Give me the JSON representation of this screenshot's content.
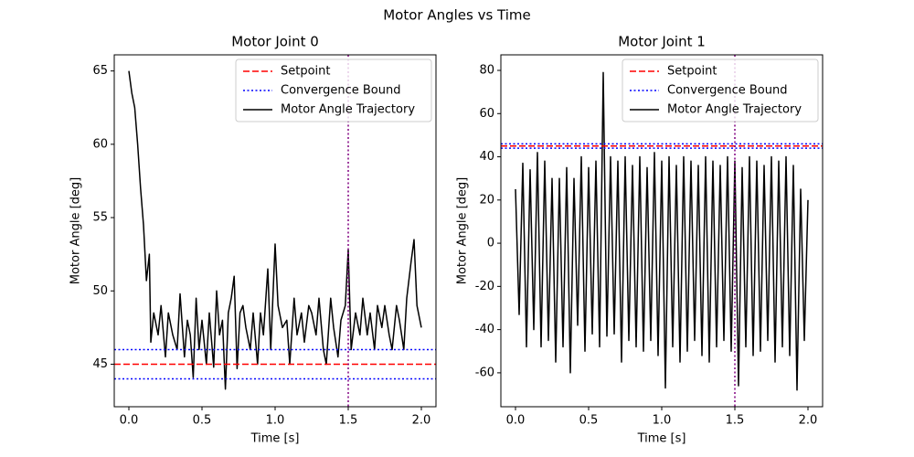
{
  "title": "Motor Angles vs Time",
  "chart_data": [
    {
      "type": "line",
      "title": "Motor Joint 0",
      "xlabel": "Time [s]",
      "ylabel": "Motor Angle [deg]",
      "xlim": [
        -0.1,
        2.1
      ],
      "ylim": [
        42.1,
        66.1
      ],
      "xticks": [
        {
          "value": 0,
          "label": "0.0"
        },
        {
          "value": 0.5,
          "label": "0.5"
        },
        {
          "value": 1,
          "label": "1.0"
        },
        {
          "value": 1.5,
          "label": "1.5"
        },
        {
          "value": 2,
          "label": "2.0"
        }
      ],
      "yticks": [
        45,
        50,
        55,
        60,
        65
      ],
      "legend": "upper right",
      "hlines": [
        {
          "name": "Setpoint",
          "color": "#ff0000",
          "style": "dashed",
          "values": [
            45
          ]
        },
        {
          "name": "Convergence Bound",
          "color": "#0000ff",
          "style": "dotted",
          "values": [
            44,
            46
          ]
        }
      ],
      "vlines": [
        {
          "color": "#800080",
          "style": "dotted",
          "values": [
            1.5
          ]
        }
      ],
      "series": [
        {
          "name": "Motor Angle Trajectory",
          "color": "#000000",
          "x": [
            0,
            0.02,
            0.04,
            0.06,
            0.08,
            0.1,
            0.12,
            0.14,
            0.15,
            0.17,
            0.2,
            0.22,
            0.25,
            0.27,
            0.3,
            0.33,
            0.35,
            0.38,
            0.4,
            0.42,
            0.44,
            0.46,
            0.48,
            0.5,
            0.53,
            0.55,
            0.58,
            0.6,
            0.62,
            0.64,
            0.66,
            0.68,
            0.7,
            0.72,
            0.74,
            0.76,
            0.78,
            0.8,
            0.83,
            0.85,
            0.88,
            0.9,
            0.92,
            0.95,
            0.97,
            1.0,
            1.02,
            1.05,
            1.08,
            1.1,
            1.13,
            1.15,
            1.18,
            1.2,
            1.23,
            1.25,
            1.28,
            1.3,
            1.33,
            1.35,
            1.38,
            1.4,
            1.43,
            1.45,
            1.48,
            1.5,
            1.52,
            1.55,
            1.58,
            1.6,
            1.63,
            1.65,
            1.68,
            1.7,
            1.73,
            1.75,
            1.78,
            1.8,
            1.83,
            1.85,
            1.88,
            1.9,
            1.93,
            1.95,
            1.97,
            2.0
          ],
          "values": [
            65,
            63.5,
            62.5,
            60,
            57,
            54.5,
            50.7,
            52.5,
            46.5,
            48.5,
            47,
            49,
            45.5,
            48.5,
            47,
            46,
            49.8,
            45.5,
            48,
            47,
            44.1,
            49.5,
            46,
            48,
            45,
            48.5,
            44.8,
            50,
            47,
            48,
            43.3,
            48.5,
            49.5,
            51,
            44.7,
            48.5,
            49,
            47.5,
            46,
            48.5,
            45,
            48.5,
            47,
            51.5,
            46,
            53.2,
            49,
            47.5,
            48,
            45,
            49.5,
            47,
            48.5,
            46.5,
            49,
            48.5,
            47,
            49.5,
            46,
            45,
            49.5,
            47.5,
            45.5,
            48,
            49,
            52.8,
            46,
            48.5,
            47,
            49.5,
            47,
            48.5,
            46,
            49,
            47.5,
            49,
            47,
            46,
            49,
            48,
            46,
            49.5,
            52,
            53.5,
            49,
            47.5
          ]
        }
      ]
    },
    {
      "type": "line",
      "title": "Motor Joint 1",
      "xlabel": "Time [s]",
      "ylabel": "Motor Angle [deg]",
      "xlim": [
        -0.1,
        2.1
      ],
      "ylim": [
        -75.7,
        87.2
      ],
      "xticks": [
        {
          "value": 0,
          "label": "0.0"
        },
        {
          "value": 0.5,
          "label": "0.5"
        },
        {
          "value": 1,
          "label": "1.0"
        },
        {
          "value": 1.5,
          "label": "1.5"
        },
        {
          "value": 2,
          "label": "2.0"
        }
      ],
      "yticks": [
        -60,
        -40,
        -20,
        0,
        20,
        40,
        60,
        80
      ],
      "legend": "upper right",
      "hlines": [
        {
          "name": "Setpoint",
          "color": "#ff0000",
          "style": "dashed",
          "values": [
            45
          ]
        },
        {
          "name": "Convergence Bound",
          "color": "#0000ff",
          "style": "dotted",
          "values": [
            44,
            46
          ]
        }
      ],
      "vlines": [
        {
          "color": "#800080",
          "style": "dotted",
          "values": [
            1.5
          ]
        }
      ],
      "series": [
        {
          "name": "Motor Angle Trajectory",
          "color": "#000000",
          "x": [
            0,
            0.025,
            0.05,
            0.075,
            0.1,
            0.125,
            0.15,
            0.175,
            0.2,
            0.225,
            0.25,
            0.275,
            0.3,
            0.325,
            0.35,
            0.375,
            0.4,
            0.425,
            0.45,
            0.475,
            0.5,
            0.525,
            0.55,
            0.575,
            0.6,
            0.625,
            0.65,
            0.675,
            0.7,
            0.725,
            0.75,
            0.775,
            0.8,
            0.825,
            0.85,
            0.875,
            0.9,
            0.925,
            0.95,
            0.975,
            1.0,
            1.025,
            1.05,
            1.075,
            1.1,
            1.125,
            1.15,
            1.175,
            1.2,
            1.225,
            1.25,
            1.275,
            1.3,
            1.325,
            1.35,
            1.375,
            1.4,
            1.425,
            1.45,
            1.475,
            1.5,
            1.525,
            1.55,
            1.575,
            1.6,
            1.625,
            1.65,
            1.675,
            1.7,
            1.725,
            1.75,
            1.775,
            1.8,
            1.825,
            1.85,
            1.875,
            1.9,
            1.925,
            1.95,
            1.975,
            2.0
          ],
          "values": [
            25,
            -33,
            37,
            -48,
            34,
            -40,
            42,
            -48,
            38,
            -45,
            30,
            -55,
            30,
            -48,
            35,
            -60,
            30,
            -38,
            40,
            -50,
            35,
            -42,
            38,
            -48,
            79,
            -43,
            40,
            -42,
            38,
            -55,
            40,
            -45,
            36,
            -48,
            40,
            -50,
            35,
            -45,
            42,
            -52,
            38,
            -67,
            40,
            -48,
            36,
            -55,
            40,
            -50,
            38,
            -45,
            36,
            -52,
            40,
            -55,
            38,
            -48,
            36,
            -45,
            40,
            -50,
            38,
            -66,
            35,
            -48,
            40,
            -52,
            38,
            -50,
            36,
            -45,
            40,
            -55,
            38,
            -48,
            40,
            -52,
            36,
            -68,
            25,
            -45,
            20
          ]
        }
      ]
    }
  ]
}
